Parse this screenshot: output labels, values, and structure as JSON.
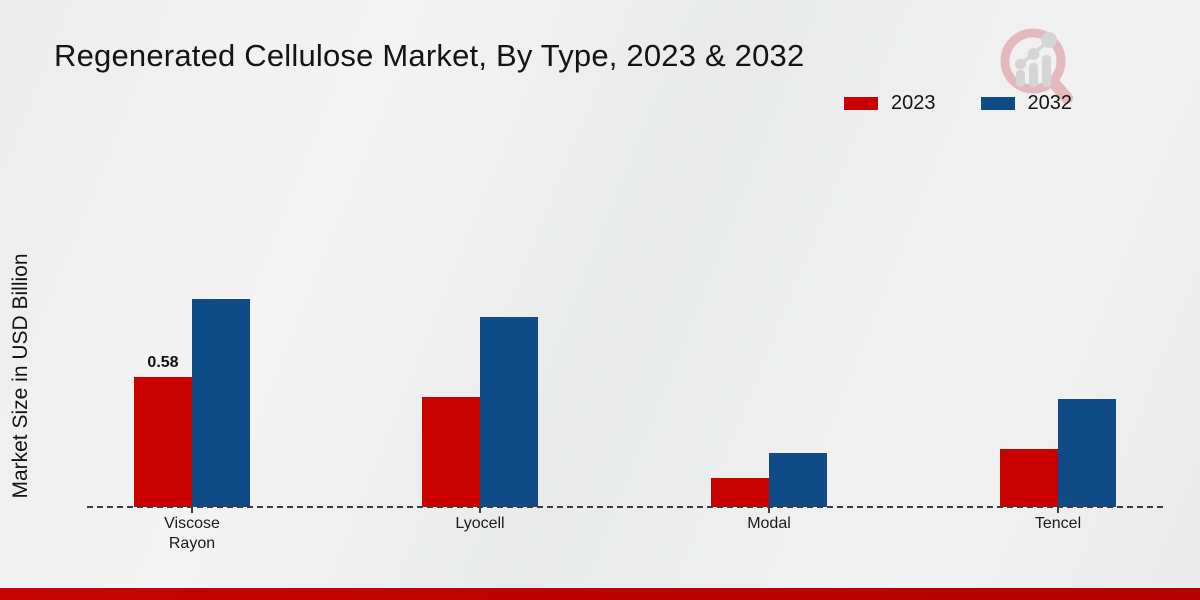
{
  "title": "Regenerated Cellulose Market, By Type, 2023 & 2032",
  "ylabel": "Market Size in USD Billion",
  "legend": [
    {
      "label": "2023",
      "color": "#c90100"
    },
    {
      "label": "2032",
      "color": "#0f4c87"
    }
  ],
  "chart_data": {
    "type": "bar",
    "title": "Regenerated Cellulose Market, By Type, 2023 & 2032",
    "ylabel": "Market Size in USD Billion",
    "xlabel": "",
    "categories": [
      "Viscose Rayon",
      "Lyocell",
      "Modal",
      "Tencel"
    ],
    "series": [
      {
        "name": "2023",
        "color": "#c90100",
        "values": [
          0.58,
          0.49,
          0.13,
          0.26
        ]
      },
      {
        "name": "2032",
        "color": "#0f4c87",
        "values": [
          0.93,
          0.85,
          0.24,
          0.48
        ]
      }
    ],
    "annotations": [
      {
        "category_index": 0,
        "series_index": 0,
        "text": "0.58"
      }
    ],
    "ylim": [
      0,
      1.0
    ],
    "grid": false,
    "baseline_style": "dashed",
    "legend_position": "top-right"
  },
  "branding": {
    "logo_name": "magnifier-growth-chart-logo",
    "logo_ring_color": "#e2b4b8",
    "logo_bars_color": "#d3d3d3",
    "bottom_strip_color": "#bf0200"
  }
}
